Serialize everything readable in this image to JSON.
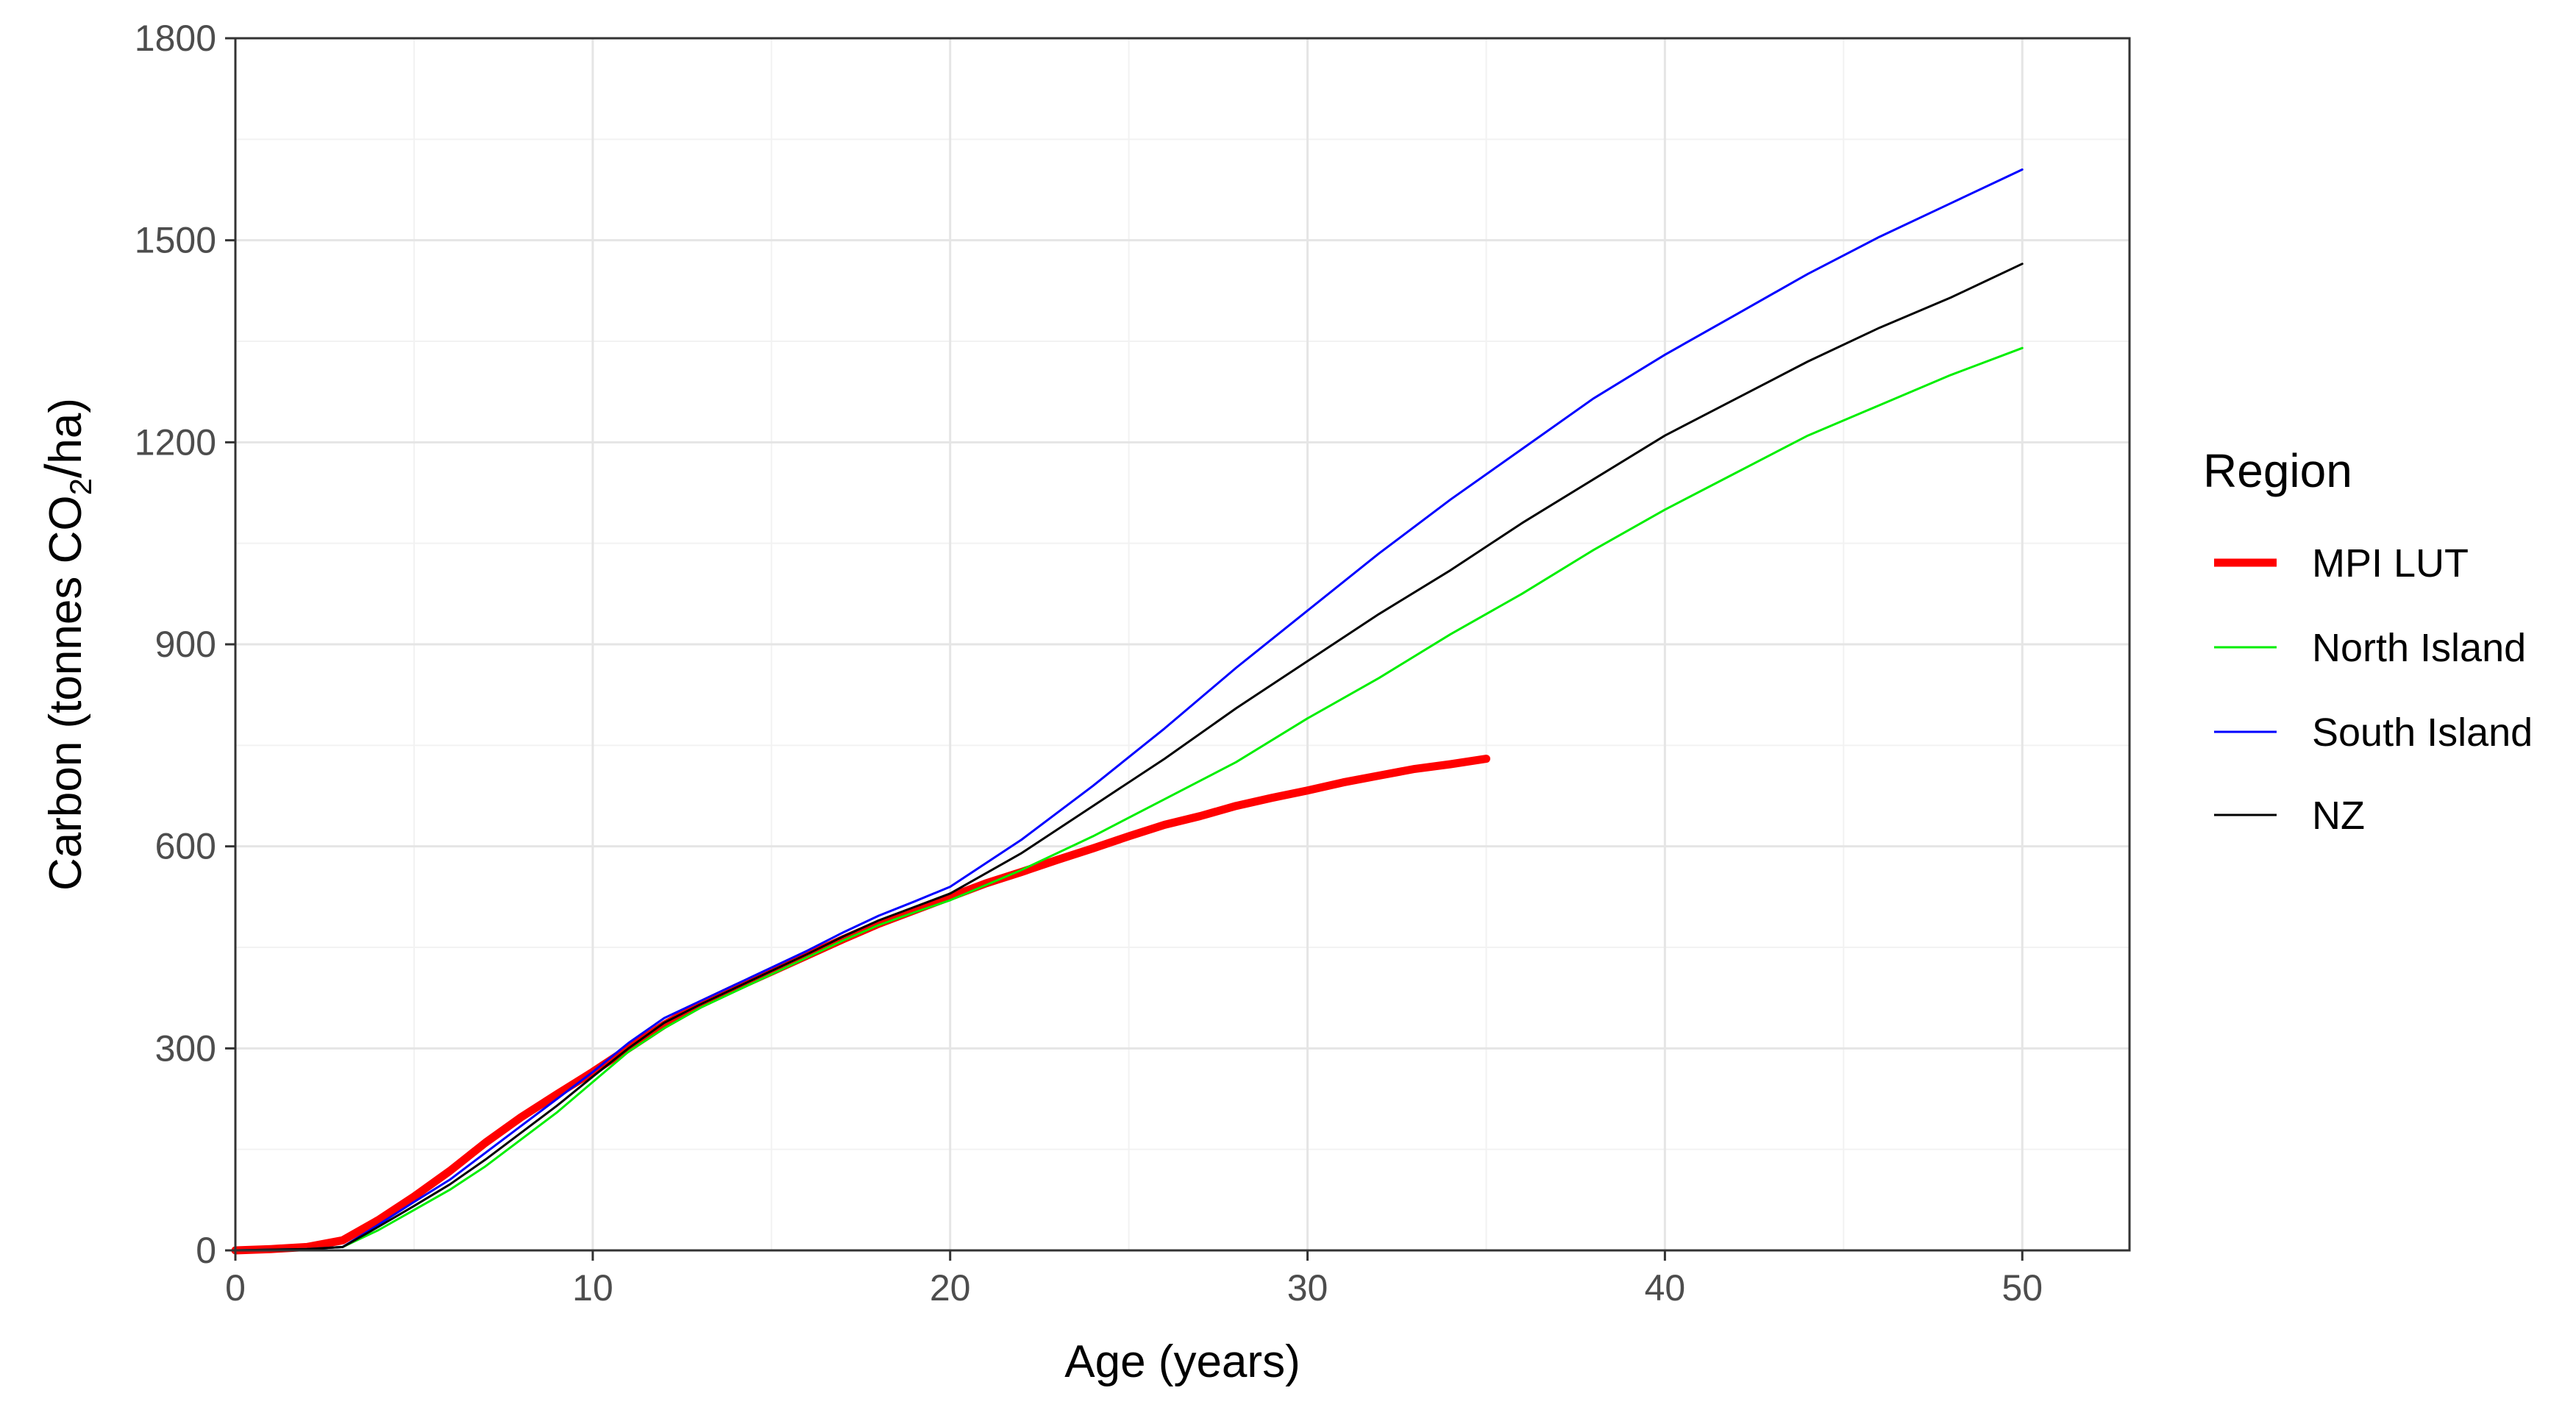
{
  "chart_data": {
    "type": "line",
    "title": "",
    "xlabel": "Age (years)",
    "ylabel": {
      "prefix": "Carbon (tonnes CO",
      "subscript": "2",
      "slash": "/",
      "suffix": "ha)"
    },
    "xlim": [
      0,
      53
    ],
    "ylim": [
      0,
      1800
    ],
    "x_ticks": [
      0,
      10,
      20,
      30,
      40,
      50
    ],
    "y_ticks": [
      0,
      300,
      600,
      900,
      1200,
      1500,
      1800
    ],
    "x_tick_labels": [
      "0",
      "10",
      "20",
      "30",
      "40",
      "50"
    ],
    "y_tick_labels": [
      "0",
      "300",
      "600",
      "900",
      "1200",
      "1500",
      "1800"
    ],
    "grid": true,
    "legend": {
      "title": "Region",
      "position": "right"
    },
    "series": [
      {
        "name": "MPI LUT",
        "color": "#ff0000",
        "thick": true,
        "x": [
          0,
          1,
          2,
          3,
          4,
          5,
          6,
          7,
          8,
          9,
          10,
          11,
          12,
          13,
          14,
          15,
          16,
          17,
          18,
          19,
          20,
          21,
          22,
          23,
          24,
          25,
          26,
          27,
          28,
          29,
          30,
          31,
          32,
          33,
          34,
          35
        ],
        "y": [
          0,
          2,
          5,
          15,
          45,
          80,
          118,
          160,
          198,
          232,
          265,
          300,
          335,
          365,
          390,
          414,
          438,
          462,
          485,
          505,
          525,
          545,
          562,
          580,
          597,
          615,
          632,
          645,
          660,
          672,
          683,
          695,
          705,
          715,
          722,
          730
        ]
      },
      {
        "name": "North Island",
        "color": "#00ee00",
        "thick": false,
        "x": [
          0,
          1,
          2,
          3,
          4,
          5,
          6,
          7,
          8,
          9,
          10,
          11,
          12,
          13,
          14,
          15,
          16,
          17,
          18,
          19,
          20,
          22,
          24,
          26,
          28,
          30,
          32,
          34,
          36,
          38,
          40,
          42,
          44,
          46,
          48,
          50
        ],
        "y": [
          0,
          1,
          2,
          5,
          30,
          60,
          90,
          125,
          165,
          205,
          250,
          295,
          330,
          360,
          385,
          410,
          435,
          460,
          483,
          502,
          520,
          565,
          615,
          670,
          725,
          790,
          850,
          915,
          975,
          1040,
          1100,
          1155,
          1210,
          1255,
          1300,
          1340
        ]
      },
      {
        "name": "South Island",
        "color": "#0000ff",
        "thick": false,
        "x": [
          0,
          1,
          2,
          3,
          4,
          5,
          6,
          7,
          8,
          9,
          10,
          11,
          12,
          13,
          14,
          15,
          16,
          17,
          18,
          19,
          20,
          22,
          24,
          26,
          28,
          30,
          32,
          34,
          36,
          38,
          40,
          42,
          44,
          46,
          48,
          50
        ],
        "y": [
          0,
          1,
          2,
          5,
          38,
          72,
          105,
          145,
          185,
          225,
          265,
          308,
          345,
          370,
          395,
          420,
          445,
          472,
          497,
          518,
          540,
          610,
          690,
          775,
          865,
          950,
          1035,
          1115,
          1190,
          1265,
          1330,
          1390,
          1450,
          1505,
          1555,
          1605
        ]
      },
      {
        "name": "NZ",
        "color": "#000000",
        "thick": false,
        "x": [
          0,
          1,
          2,
          3,
          4,
          5,
          6,
          7,
          8,
          9,
          10,
          11,
          12,
          13,
          14,
          15,
          16,
          17,
          18,
          19,
          20,
          22,
          24,
          26,
          28,
          30,
          32,
          34,
          36,
          38,
          40,
          42,
          44,
          46,
          48,
          50
        ],
        "y": [
          0,
          1,
          2,
          5,
          35,
          66,
          98,
          135,
          175,
          215,
          258,
          300,
          338,
          365,
          390,
          415,
          440,
          466,
          490,
          510,
          530,
          590,
          660,
          730,
          805,
          875,
          945,
          1010,
          1080,
          1145,
          1210,
          1265,
          1320,
          1370,
          1415,
          1465
        ]
      }
    ]
  }
}
